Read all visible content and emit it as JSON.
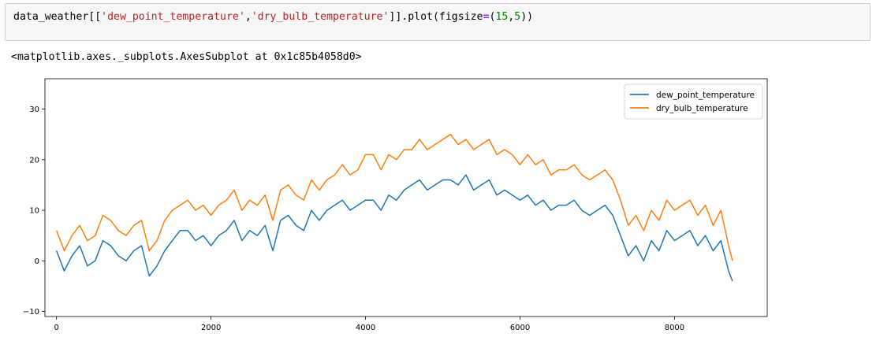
{
  "cell": {
    "code": {
      "prefix": "data_weather[[",
      "str1": "'dew_point_temperature'",
      "comma": ",",
      "str2": "'dry_bulb_temperature'",
      "mid": "]].plot(figsize",
      "eq": "=",
      "open": "(",
      "num1": "15",
      "comma2": ",",
      "num2": "5",
      "close": "))"
    },
    "output_repr": "<matplotlib.axes._subplots.AxesSubplot at 0x1c85b4058d0>"
  },
  "chart_data": {
    "type": "line",
    "xlim": [
      -150,
      9200
    ],
    "ylim": [
      -11,
      36
    ],
    "xticks": [
      0,
      2000,
      4000,
      6000,
      8000
    ],
    "yticks": [
      -10,
      0,
      10,
      20,
      30
    ],
    "xtick_labels": [
      "0",
      "2000",
      "4000",
      "6000",
      "8000"
    ],
    "ytick_labels": [
      "−10",
      "0",
      "10",
      "20",
      "30"
    ],
    "grid": false,
    "legend_position": "top-right",
    "x": [
      0,
      100,
      200,
      300,
      400,
      500,
      600,
      700,
      800,
      900,
      1000,
      1100,
      1200,
      1300,
      1400,
      1500,
      1600,
      1700,
      1800,
      1900,
      2000,
      2100,
      2200,
      2300,
      2400,
      2500,
      2600,
      2700,
      2800,
      2900,
      3000,
      3100,
      3200,
      3300,
      3400,
      3500,
      3600,
      3700,
      3800,
      3900,
      4000,
      4100,
      4200,
      4300,
      4400,
      4500,
      4600,
      4700,
      4800,
      4900,
      5000,
      5100,
      5200,
      5300,
      5400,
      5500,
      5600,
      5700,
      5800,
      5900,
      6000,
      6100,
      6200,
      6300,
      6400,
      6500,
      6600,
      6700,
      6800,
      6900,
      7000,
      7100,
      7200,
      7300,
      7400,
      7500,
      7600,
      7700,
      7800,
      7900,
      8000,
      8100,
      8200,
      8300,
      8400,
      8500,
      8600,
      8700,
      8750
    ],
    "series": [
      {
        "name": "dew_point_temperature",
        "color": "#1f77b4",
        "values": [
          2,
          -2,
          1,
          3,
          -1,
          0,
          4,
          3,
          1,
          0,
          2,
          3,
          -3,
          -1,
          2,
          4,
          6,
          6,
          4,
          5,
          3,
          5,
          6,
          8,
          4,
          6,
          5,
          7,
          2,
          8,
          9,
          7,
          6,
          10,
          8,
          10,
          11,
          12,
          10,
          11,
          12,
          12,
          10,
          13,
          12,
          14,
          15,
          16,
          14,
          15,
          16,
          16,
          15,
          17,
          14,
          15,
          16,
          13,
          14,
          13,
          12,
          13,
          11,
          12,
          10,
          11,
          11,
          12,
          10,
          9,
          10,
          11,
          9,
          5,
          1,
          3,
          0,
          4,
          2,
          6,
          4,
          5,
          6,
          3,
          5,
          2,
          4,
          -2,
          -4
        ]
      },
      {
        "name": "dry_bulb_temperature",
        "color": "#ff7f0e",
        "values": [
          6,
          2,
          5,
          7,
          4,
          5,
          9,
          8,
          6,
          5,
          7,
          8,
          2,
          4,
          8,
          10,
          11,
          12,
          10,
          11,
          9,
          11,
          12,
          14,
          10,
          12,
          11,
          13,
          8,
          14,
          15,
          13,
          12,
          16,
          14,
          16,
          17,
          19,
          17,
          18,
          21,
          21,
          18,
          21,
          20,
          22,
          22,
          24,
          22,
          23,
          24,
          25,
          23,
          24,
          22,
          23,
          24,
          21,
          22,
          21,
          19,
          21,
          19,
          20,
          17,
          18,
          18,
          19,
          17,
          16,
          17,
          18,
          16,
          12,
          7,
          9,
          6,
          10,
          8,
          12,
          10,
          11,
          12,
          9,
          11,
          7,
          10,
          3,
          0
        ]
      }
    ]
  }
}
